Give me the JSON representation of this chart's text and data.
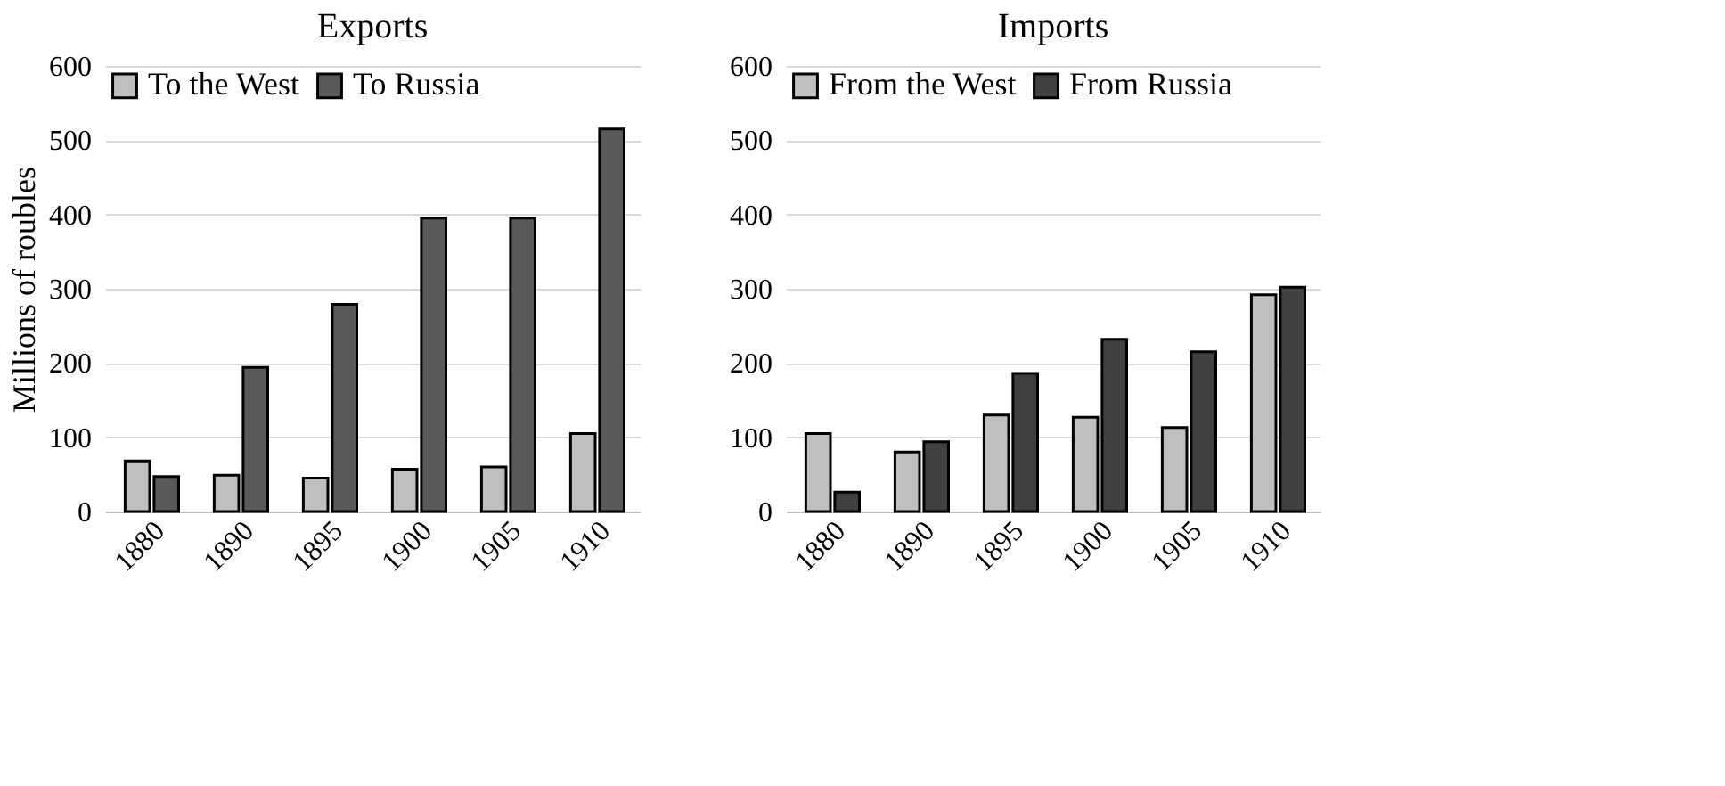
{
  "chart_data": [
    {
      "type": "bar",
      "title": "Exports",
      "ylabel": "Millions of roubles",
      "categories": [
        "1880",
        "1890",
        "1895",
        "1900",
        "1905",
        "1910"
      ],
      "series": [
        {
          "name": "To the West",
          "color": "#bfbfbf",
          "values": [
            68,
            49,
            45,
            57,
            60,
            105
          ]
        },
        {
          "name": "To Russia",
          "color": "#595959",
          "values": [
            47,
            194,
            279,
            395,
            395,
            515
          ]
        }
      ],
      "ylim": [
        0,
        600
      ],
      "yticks": [
        0,
        100,
        200,
        300,
        400,
        500,
        600
      ],
      "grid": "y",
      "legend": "top left"
    },
    {
      "type": "bar",
      "title": "Imports",
      "categories": [
        "1880",
        "1890",
        "1895",
        "1900",
        "1905",
        "1910"
      ],
      "series": [
        {
          "name": "From the West",
          "color": "#bfbfbf",
          "values": [
            105,
            80,
            130,
            127,
            113,
            292
          ]
        },
        {
          "name": "From Russia",
          "color": "#404040",
          "values": [
            26,
            94,
            186,
            232,
            215,
            302
          ]
        }
      ],
      "ylim": [
        0,
        600
      ],
      "yticks": [
        0,
        100,
        200,
        300,
        400,
        500,
        600
      ],
      "grid": "y",
      "legend": "top left"
    }
  ]
}
